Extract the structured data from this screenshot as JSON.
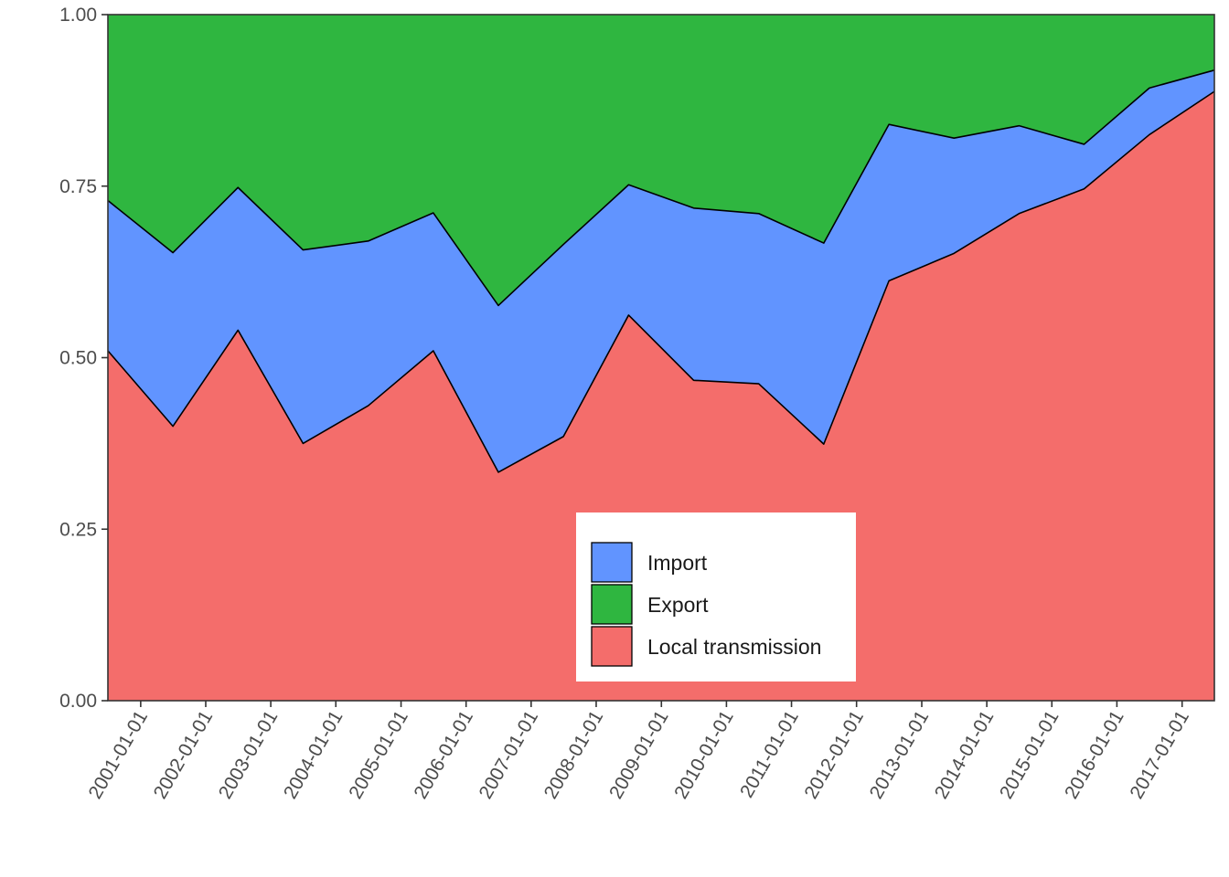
{
  "chart_data": {
    "type": "area",
    "stacked": true,
    "x": [
      "2000-07-01",
      "2001-07-01",
      "2002-07-01",
      "2003-07-01",
      "2004-07-01",
      "2005-07-01",
      "2006-07-01",
      "2007-07-01",
      "2008-07-01",
      "2009-07-01",
      "2010-07-01",
      "2011-07-01",
      "2012-07-01",
      "2013-07-01",
      "2014-07-01",
      "2015-07-01",
      "2016-07-01",
      "2017-07-01"
    ],
    "x_range": [
      "2000-07-01",
      "2017-07-01"
    ],
    "x_ticks": [
      "2001-01-01",
      "2002-01-01",
      "2003-01-01",
      "2004-01-01",
      "2005-01-01",
      "2006-01-01",
      "2007-01-01",
      "2008-01-01",
      "2009-01-01",
      "2010-01-01",
      "2011-01-01",
      "2012-01-01",
      "2013-01-01",
      "2014-01-01",
      "2015-01-01",
      "2016-01-01",
      "2017-01-01"
    ],
    "y_ticks": [
      "0.00",
      "0.25",
      "0.50",
      "0.75",
      "1.00"
    ],
    "ylim": [
      0,
      1
    ],
    "grid": false,
    "legend_position": "bottom-center",
    "series": [
      {
        "name": "Local transmission",
        "color": "#f46d6b",
        "values": [
          0.51,
          0.4,
          0.54,
          0.375,
          0.43,
          0.51,
          0.333,
          0.385,
          0.562,
          0.467,
          0.462,
          0.374,
          0.612,
          0.652,
          0.71,
          0.746,
          0.825,
          0.888
        ]
      },
      {
        "name": "Import",
        "color": "#6194ff",
        "values": [
          0.219,
          0.253,
          0.208,
          0.282,
          0.24,
          0.201,
          0.243,
          0.28,
          0.19,
          0.251,
          0.248,
          0.293,
          0.228,
          0.168,
          0.128,
          0.065,
          0.068,
          0.031
        ]
      },
      {
        "name": "Export",
        "color": "#2fb640",
        "values": [
          0.271,
          0.347,
          0.252,
          0.343,
          0.33,
          0.289,
          0.424,
          0.335,
          0.248,
          0.282,
          0.29,
          0.333,
          0.16,
          0.18,
          0.162,
          0.189,
          0.107,
          0.081
        ]
      }
    ],
    "legend": [
      "Import",
      "Export",
      "Local transmission"
    ]
  }
}
